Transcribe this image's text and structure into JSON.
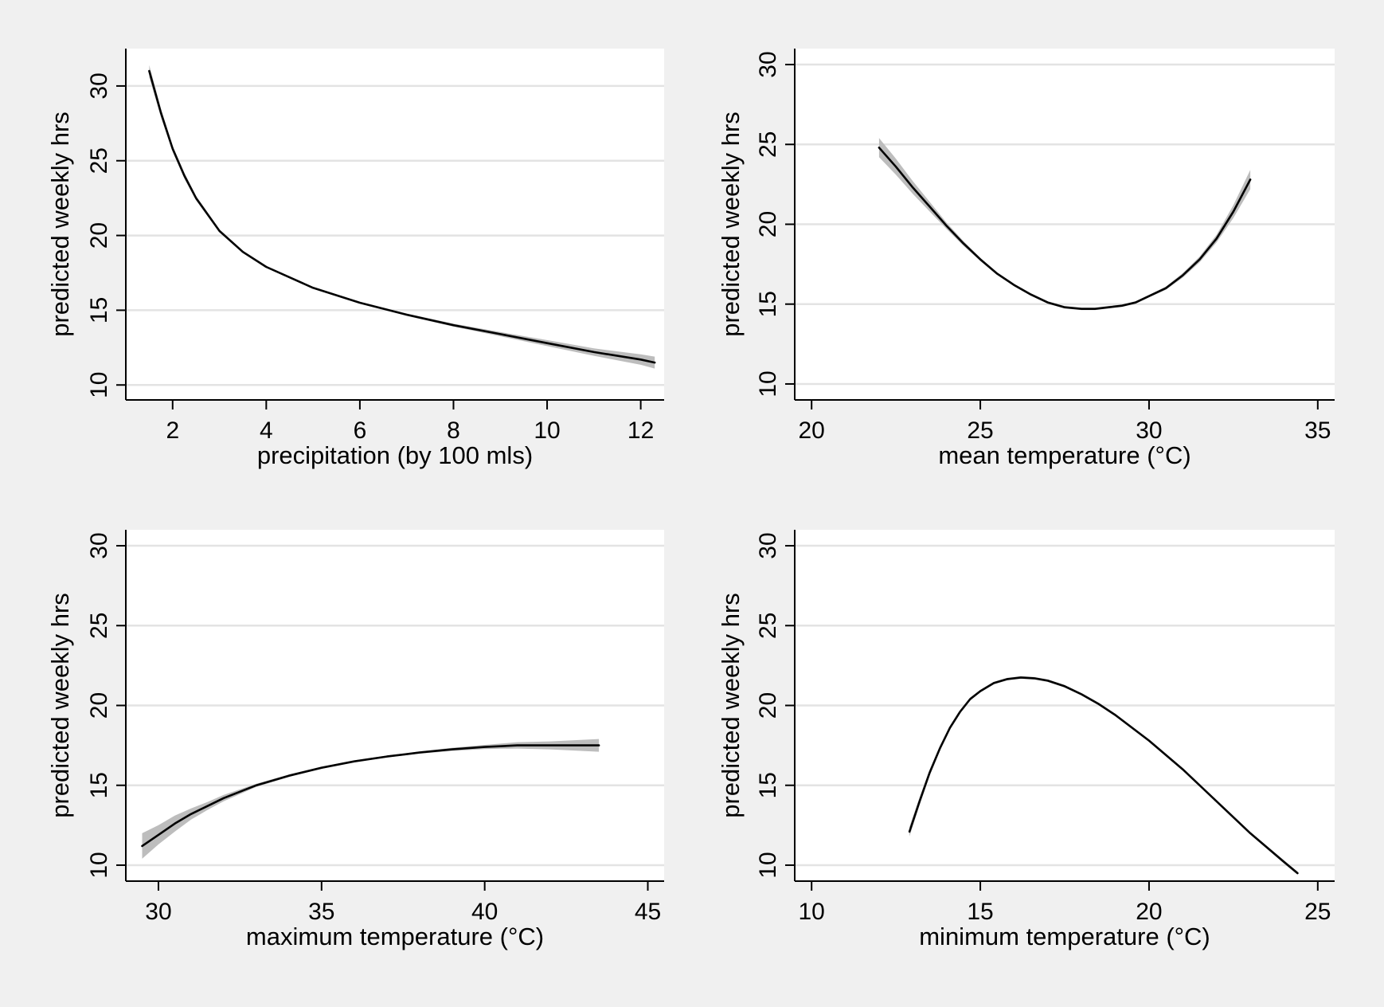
{
  "colors": {
    "page_background": "#f0f0f0",
    "plot_background": "#ffffff",
    "gridline": "#e3e3e3",
    "axis": "#000000",
    "line": "#000000",
    "confidence_band": "#bdbdbd"
  },
  "chart_data": [
    {
      "type": "line",
      "xlabel": "precipitation (by 100 mls)",
      "ylabel": "predicted weekly hrs",
      "xlim": [
        1.0,
        12.5
      ],
      "ylim": [
        9.0,
        32.5
      ],
      "xticks": [
        2,
        4,
        6,
        8,
        10,
        12
      ],
      "yticks": [
        10,
        15,
        20,
        25,
        30
      ],
      "grid": true,
      "series": [
        {
          "x": [
            1.5,
            1.75,
            2,
            2.25,
            2.5,
            3,
            3.5,
            4,
            5,
            6,
            7,
            8,
            9,
            10,
            11,
            12,
            12.3
          ],
          "y": [
            31.0,
            28.2,
            25.8,
            24.0,
            22.5,
            20.3,
            18.9,
            17.9,
            16.5,
            15.5,
            14.7,
            14.0,
            13.4,
            12.8,
            12.2,
            11.7,
            11.5
          ],
          "lower": [
            30.6,
            27.9,
            25.6,
            23.8,
            22.35,
            20.2,
            18.82,
            17.84,
            16.45,
            15.44,
            14.62,
            13.9,
            13.26,
            12.6,
            11.95,
            11.35,
            11.1
          ],
          "upper": [
            31.4,
            28.5,
            26.0,
            24.2,
            22.65,
            20.4,
            18.98,
            17.96,
            16.55,
            15.56,
            14.78,
            14.1,
            13.54,
            13.0,
            12.45,
            12.05,
            11.9
          ]
        }
      ]
    },
    {
      "type": "line",
      "xlabel": "mean temperature (°C)",
      "ylabel": "predicted weekly hrs",
      "xlim": [
        19.5,
        35.5
      ],
      "ylim": [
        9.0,
        31.0
      ],
      "xticks": [
        20,
        25,
        30,
        35
      ],
      "yticks": [
        10,
        15,
        20,
        25,
        30
      ],
      "grid": true,
      "series": [
        {
          "x": [
            22.0,
            22.5,
            23.0,
            23.5,
            24.0,
            24.5,
            25.0,
            25.5,
            26.0,
            26.5,
            27.0,
            27.5,
            28.0,
            28.4,
            28.8,
            29.2,
            29.6,
            30.0,
            30.5,
            31.0,
            31.5,
            32.0,
            32.5,
            33.0
          ],
          "y": [
            24.8,
            23.6,
            22.3,
            21.1,
            19.9,
            18.8,
            17.8,
            16.9,
            16.2,
            15.6,
            15.1,
            14.8,
            14.7,
            14.7,
            14.8,
            14.9,
            15.1,
            15.5,
            16.0,
            16.8,
            17.8,
            19.1,
            20.8,
            22.8
          ],
          "lower": [
            24.2,
            23.1,
            21.9,
            20.8,
            19.7,
            18.65,
            17.7,
            16.82,
            16.12,
            15.52,
            15.02,
            14.72,
            14.62,
            14.62,
            14.72,
            14.82,
            15.02,
            15.42,
            15.9,
            16.66,
            17.62,
            18.86,
            20.4,
            22.2
          ],
          "upper": [
            25.4,
            24.1,
            22.7,
            21.4,
            20.1,
            18.95,
            17.9,
            16.98,
            16.28,
            15.68,
            15.18,
            14.88,
            14.78,
            14.78,
            14.88,
            14.98,
            15.18,
            15.58,
            16.1,
            16.94,
            17.98,
            19.34,
            21.2,
            23.4
          ]
        }
      ]
    },
    {
      "type": "line",
      "xlabel": "maximum temperature (°C)",
      "ylabel": "predicted weekly hrs",
      "xlim": [
        29.0,
        45.5
      ],
      "ylim": [
        9.0,
        31.0
      ],
      "xticks": [
        30,
        35,
        40,
        45
      ],
      "yticks": [
        10,
        15,
        20,
        25,
        30
      ],
      "grid": true,
      "series": [
        {
          "x": [
            29.5,
            30.0,
            30.5,
            31.0,
            31.5,
            32.0,
            33.0,
            34.0,
            35.0,
            36.0,
            37.0,
            38.0,
            39.0,
            40.0,
            41.0,
            42.0,
            43.0,
            43.5
          ],
          "y": [
            11.2,
            11.9,
            12.6,
            13.2,
            13.7,
            14.2,
            15.0,
            15.6,
            16.1,
            16.5,
            16.8,
            17.05,
            17.25,
            17.4,
            17.5,
            17.5,
            17.5,
            17.5
          ],
          "lower": [
            10.4,
            11.3,
            12.1,
            12.85,
            13.45,
            14.0,
            14.9,
            15.52,
            16.04,
            16.44,
            16.74,
            16.98,
            17.15,
            17.27,
            17.3,
            17.25,
            17.15,
            17.1
          ],
          "upper": [
            12.0,
            12.5,
            13.1,
            13.55,
            13.95,
            14.4,
            15.1,
            15.68,
            16.16,
            16.56,
            16.86,
            17.12,
            17.35,
            17.53,
            17.7,
            17.75,
            17.85,
            17.9
          ]
        }
      ]
    },
    {
      "type": "line",
      "xlabel": "minimum temperature (°C)",
      "ylabel": "predicted weekly hrs",
      "xlim": [
        9.5,
        25.5
      ],
      "ylim": [
        9.0,
        31.0
      ],
      "xticks": [
        10,
        15,
        20,
        25
      ],
      "yticks": [
        10,
        15,
        20,
        25,
        30
      ],
      "grid": true,
      "series": [
        {
          "x": [
            12.9,
            13.2,
            13.5,
            13.8,
            14.1,
            14.4,
            14.7,
            15.0,
            15.4,
            15.8,
            16.2,
            16.6,
            17.0,
            17.5,
            18.0,
            18.5,
            19.0,
            20.0,
            21.0,
            22.0,
            23.0,
            24.0,
            24.4
          ],
          "y": [
            12.1,
            14.0,
            15.8,
            17.3,
            18.6,
            19.6,
            20.4,
            20.9,
            21.4,
            21.65,
            21.75,
            21.7,
            21.55,
            21.2,
            20.7,
            20.1,
            19.4,
            17.8,
            16.0,
            14.0,
            12.0,
            10.2,
            9.5
          ],
          "lower": [
            11.8,
            13.75,
            15.6,
            17.15,
            18.48,
            19.5,
            20.3,
            20.82,
            21.32,
            21.57,
            21.67,
            21.62,
            21.47,
            21.12,
            20.62,
            20.02,
            19.32,
            17.72,
            15.92,
            13.92,
            11.92,
            10.1,
            9.4
          ],
          "upper": [
            12.4,
            14.25,
            16.0,
            17.45,
            18.72,
            19.7,
            20.5,
            20.98,
            21.48,
            21.73,
            21.83,
            21.78,
            21.63,
            21.28,
            20.78,
            20.18,
            19.48,
            17.88,
            16.08,
            14.08,
            12.08,
            10.3,
            9.6
          ]
        }
      ]
    }
  ]
}
